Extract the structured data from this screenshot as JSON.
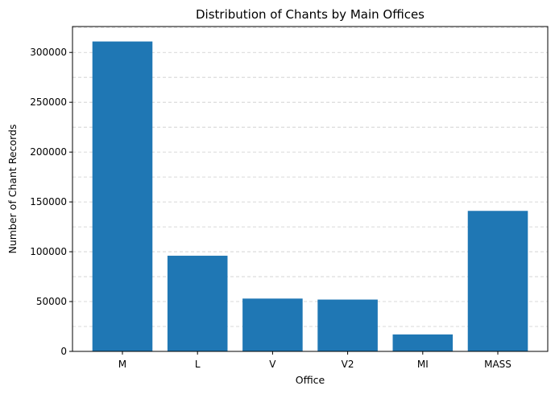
{
  "chart_data": {
    "type": "bar",
    "title": "Distribution of Chants by Main Offices",
    "xlabel": "Office",
    "ylabel": "Number of Chant Records",
    "categories": [
      "M",
      "L",
      "V",
      "V2",
      "MI",
      "MASS"
    ],
    "values": [
      311000,
      96000,
      53000,
      52000,
      17000,
      141000
    ],
    "ylim": [
      0,
      326000
    ],
    "yticks": [
      0,
      50000,
      100000,
      150000,
      200000,
      250000,
      300000
    ],
    "ytick_labels": [
      "0",
      "50000",
      "100000",
      "150000",
      "200000",
      "250000",
      "300000"
    ],
    "grid": "y-dashed",
    "bar_color": "#1f77b4",
    "legend": "none"
  }
}
